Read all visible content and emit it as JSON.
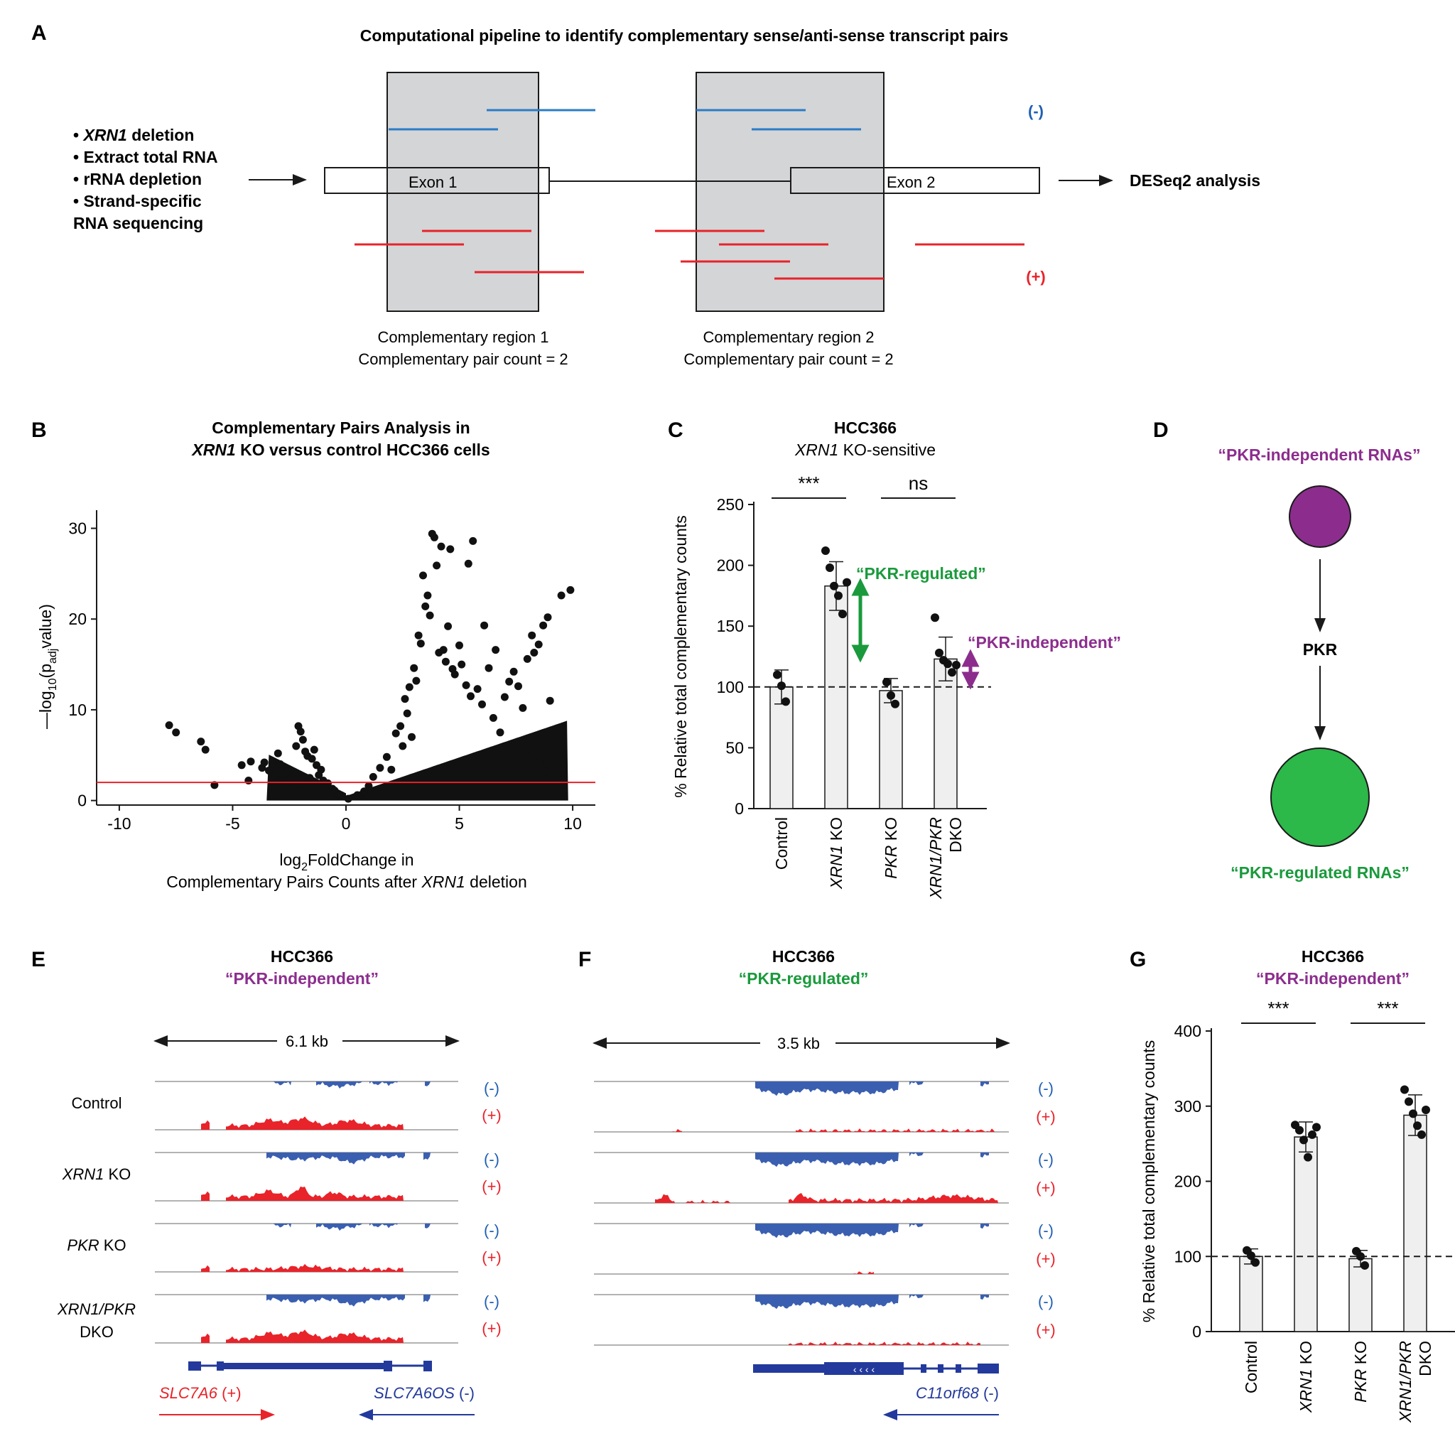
{
  "colors": {
    "blue": "#1f5fb4",
    "lightblue": "#2a7cc7",
    "red": "#e8232a",
    "green": "#1a9a3c",
    "purple": "#8c2d8e",
    "navy": "#233a9c",
    "grey": "#d4d5d7"
  },
  "panelA": {
    "label": "A",
    "title": "Computational pipeline to identify complementary sense/anti-sense transcript pairs",
    "steps": [
      {
        "italic": "XRN1",
        "text": " deletion"
      },
      {
        "italic": "",
        "text": "Extract total RNA"
      },
      {
        "italic": "",
        "text": "rRNA depletion"
      },
      {
        "italic": "",
        "text": "Strand-specific"
      }
    ],
    "step_last": "RNA sequencing",
    "exon1": "Exon 1",
    "exon2": "Exon 2",
    "minus": "(-)",
    "plus": "(+)",
    "result": "DESeq2 analysis",
    "region1_l1": "Complementary region 1",
    "region1_l2": "Complementary pair count = 2",
    "region2_l1": "Complementary region 2",
    "region2_l2": "Complementary pair count = 2"
  },
  "panelB": {
    "label": "B",
    "title1": "Complementary Pairs Analysis in",
    "title2_italic": "XRN1",
    "title2_rest": " KO versus control HCC366 cells",
    "ylabel_parts": [
      "—log",
      "10",
      "(p",
      "adj",
      "value)"
    ],
    "xlabel1_parts": [
      "log",
      "2",
      "FoldChange in"
    ],
    "xlabel2_pre": "Complementary Pairs Counts after ",
    "xlabel2_italic": "XRN1",
    "xlabel2_post": " deletion"
  },
  "panelC": {
    "label": "C",
    "title": "HCC366",
    "subtitle_italic": "XRN1",
    "subtitle_rest": " KO-sensitive",
    "sig1": "***",
    "sig2": "ns",
    "pkr_regulated": "“PKR-regulated”",
    "pkr_independent": "“PKR-independent”"
  },
  "panelD": {
    "label": "D",
    "top": "“PKR-independent RNAs”",
    "middle": "PKR",
    "bottom": "“PKR-regulated RNAs”"
  },
  "panelE": {
    "label": "E",
    "title": "HCC366",
    "subtitle": "“PKR-independent”",
    "scale": "6.1 kb",
    "samples": [
      {
        "italic": "",
        "rest": "Control"
      },
      {
        "italic": "XRN1",
        "rest": " KO"
      },
      {
        "italic": "PKR",
        "rest": " KO"
      },
      {
        "italic": "XRN1/PKR",
        "rest": ""
      }
    ],
    "dko": "DKO",
    "strand_minus": "(-)",
    "strand_plus": "(+)",
    "gene_plus": "SLC7A6",
    "gene_plus_strand": " (+)",
    "gene_minus": "SLC7A6OS",
    "gene_minus_strand": " (-)"
  },
  "panelF": {
    "label": "F",
    "title": "HCC366",
    "subtitle": "“PKR-regulated”",
    "scale": "3.5 kb",
    "strand_minus": "(-)",
    "strand_plus": "(+)",
    "gene": "C11orf68",
    "gene_strand": " (-)"
  },
  "panelG": {
    "label": "G",
    "title": "HCC366",
    "subtitle": "“PKR-independent”",
    "sig1": "***",
    "sig2": "***"
  },
  "chart_data": [
    {
      "type": "scatter",
      "panel": "B",
      "title": "Complementary Pairs Analysis in XRN1 KO versus control HCC366 cells",
      "xlabel": "log2FoldChange in Complementary Pairs Counts after XRN1 deletion",
      "ylabel": "—log10(padj value)",
      "xlim": [
        -11,
        11
      ],
      "ylim": [
        -0.5,
        32
      ],
      "xticks": [
        -10,
        -5,
        0,
        5,
        10
      ],
      "yticks": [
        0,
        10,
        20,
        30
      ],
      "threshold_line": 2,
      "points": [
        [
          -7.8,
          8.3
        ],
        [
          -7.5,
          7.5
        ],
        [
          -6.4,
          6.5
        ],
        [
          -6.2,
          5.6
        ],
        [
          -5.8,
          1.7
        ],
        [
          -4.3,
          2.2
        ],
        [
          -4.2,
          4.3
        ],
        [
          -4.6,
          3.9
        ],
        [
          -3.7,
          3.6
        ],
        [
          -3.6,
          4.2
        ],
        [
          -3.4,
          3.3
        ],
        [
          -3.3,
          0.5
        ],
        [
          -3.0,
          5.2
        ],
        [
          -2.9,
          4.0
        ],
        [
          -2.8,
          2.6
        ],
        [
          -2.6,
          3.2
        ],
        [
          -2.3,
          1.6
        ],
        [
          -2.2,
          6.0
        ],
        [
          -2.1,
          8.2
        ],
        [
          -2.0,
          7.6
        ],
        [
          -1.9,
          6.7
        ],
        [
          -1.8,
          5.4
        ],
        [
          -1.7,
          4.9
        ],
        [
          -1.6,
          2.5
        ],
        [
          -1.5,
          4.6
        ],
        [
          -1.4,
          5.6
        ],
        [
          -1.3,
          3.9
        ],
        [
          -1.2,
          2.8
        ],
        [
          -1.1,
          3.4
        ],
        [
          -1.0,
          2.2
        ],
        [
          -0.8,
          1.9
        ],
        [
          -0.6,
          1.3
        ],
        [
          -0.5,
          1.1
        ],
        [
          -0.3,
          0.6
        ],
        [
          0.1,
          0.2
        ],
        [
          0.5,
          0.6
        ],
        [
          0.8,
          1.0
        ],
        [
          1.0,
          1.6
        ],
        [
          1.2,
          2.6
        ],
        [
          1.5,
          3.6
        ],
        [
          1.8,
          4.8
        ],
        [
          2.0,
          3.4
        ],
        [
          2.2,
          7.4
        ],
        [
          2.4,
          8.2
        ],
        [
          2.5,
          6.0
        ],
        [
          2.6,
          11.2
        ],
        [
          2.7,
          9.6
        ],
        [
          2.8,
          12.5
        ],
        [
          2.9,
          7.0
        ],
        [
          3.0,
          14.6
        ],
        [
          3.1,
          13.2
        ],
        [
          3.2,
          18.2
        ],
        [
          3.3,
          17.3
        ],
        [
          3.4,
          24.8
        ],
        [
          3.5,
          21.4
        ],
        [
          3.6,
          22.6
        ],
        [
          3.7,
          20.4
        ],
        [
          3.8,
          29.4
        ],
        [
          3.9,
          29.0
        ],
        [
          4.0,
          25.9
        ],
        [
          4.1,
          16.3
        ],
        [
          4.2,
          28.0
        ],
        [
          4.3,
          16.6
        ],
        [
          4.4,
          15.3
        ],
        [
          4.5,
          19.2
        ],
        [
          4.6,
          27.7
        ],
        [
          4.7,
          14.5
        ],
        [
          4.8,
          13.9
        ],
        [
          5.0,
          17.1
        ],
        [
          5.1,
          15.0
        ],
        [
          5.3,
          12.7
        ],
        [
          5.4,
          26.1
        ],
        [
          5.5,
          11.5
        ],
        [
          5.6,
          28.6
        ],
        [
          5.8,
          12.3
        ],
        [
          6.0,
          10.6
        ],
        [
          6.1,
          19.3
        ],
        [
          6.3,
          14.6
        ],
        [
          6.5,
          9.1
        ],
        [
          6.6,
          16.6
        ],
        [
          6.8,
          7.5
        ],
        [
          7.0,
          11.4
        ],
        [
          7.2,
          13.1
        ],
        [
          7.4,
          14.2
        ],
        [
          7.6,
          12.6
        ],
        [
          7.8,
          10.2
        ],
        [
          8.0,
          15.6
        ],
        [
          8.2,
          18.2
        ],
        [
          8.3,
          16.3
        ],
        [
          8.5,
          17.2
        ],
        [
          8.7,
          19.3
        ],
        [
          8.9,
          20.2
        ],
        [
          9.0,
          11.0
        ],
        [
          8.2,
          5.2
        ],
        [
          8.5,
          4.2
        ],
        [
          9.3,
          4.1
        ],
        [
          9.5,
          22.6
        ],
        [
          9.9,
          23.2
        ],
        [
          8.8,
          3.2
        ]
      ]
    },
    {
      "type": "bar",
      "panel": "C",
      "title": "HCC366",
      "subtitle": "XRN1 KO-sensitive",
      "categories": [
        "Control",
        "XRN1 KO",
        "PKR KO",
        "XRN1/PKR DKO"
      ],
      "values": [
        100,
        183,
        97,
        123
      ],
      "errors": [
        14,
        20,
        10,
        18
      ],
      "points": [
        [
          110,
          101,
          88
        ],
        [
          212,
          198,
          183,
          175,
          160,
          186
        ],
        [
          104,
          93,
          86
        ],
        [
          157,
          128,
          122,
          119,
          112,
          118
        ]
      ],
      "ylabel": "% Relative total complementary counts",
      "ylim": [
        0,
        250
      ],
      "yticks": [
        0,
        50,
        100,
        150,
        200,
        250
      ],
      "reference_line": 100
    },
    {
      "type": "bar",
      "panel": "G",
      "title": "HCC366",
      "subtitle": "“PKR-independent”",
      "categories": [
        "Control",
        "XRN1 KO",
        "PKR KO",
        "XRN1/PKR DKO"
      ],
      "values": [
        100,
        259,
        97,
        288
      ],
      "errors": [
        10,
        20,
        11,
        27
      ],
      "points": [
        [
          108,
          101,
          92
        ],
        [
          275,
          268,
          255,
          232,
          262,
          272
        ],
        [
          107,
          100,
          88
        ],
        [
          322,
          306,
          290,
          274,
          262,
          295
        ]
      ],
      "ylabel": "% Relative total complementary counts",
      "ylim": [
        0,
        400
      ],
      "yticks": [
        0,
        100,
        200,
        300,
        400
      ],
      "reference_line": 100
    }
  ]
}
